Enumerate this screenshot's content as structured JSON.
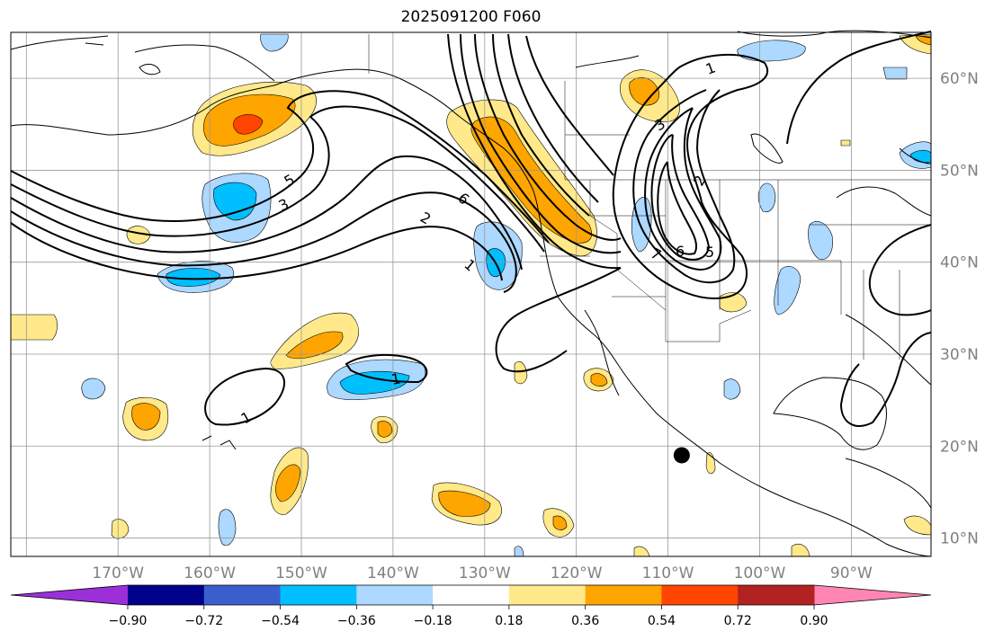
{
  "title": "2025091200 F060",
  "lat_labels": [
    {
      "value": 60,
      "text": "60°N"
    },
    {
      "value": 50,
      "text": "50°N"
    },
    {
      "value": 40,
      "text": "40°N"
    },
    {
      "value": 30,
      "text": "30°N"
    },
    {
      "value": 20,
      "text": "20°N"
    },
    {
      "value": 10,
      "text": "10°N"
    }
  ],
  "lon_labels": [
    {
      "value": -170,
      "text": "170°W"
    },
    {
      "value": -160,
      "text": "160°W"
    },
    {
      "value": -150,
      "text": "150°W"
    },
    {
      "value": -140,
      "text": "140°W"
    },
    {
      "value": -130,
      "text": "130°W"
    },
    {
      "value": -120,
      "text": "120°W"
    },
    {
      "value": -110,
      "text": "110°W"
    },
    {
      "value": -100,
      "text": "100°W"
    },
    {
      "value": -90,
      "text": "90°W"
    }
  ],
  "colorbar": {
    "bins": [
      "#9b30d9",
      "#00008b",
      "#3a5fcd",
      "#00bfff",
      "#add8ff",
      "#ffffff",
      "#ffe98a",
      "#ffa500",
      "#ff4500",
      "#b22222",
      "#ff85b3"
    ],
    "labels": [
      "−0.90",
      "−0.72",
      "−0.54",
      "−0.36",
      "−0.18",
      "0.18",
      "0.36",
      "0.54",
      "0.72",
      "0.90"
    ]
  },
  "contour_labels": [
    "5",
    "3",
    "2",
    "1",
    "6",
    "1",
    "1",
    "1",
    "3",
    "2",
    "6",
    "5",
    "7"
  ],
  "marker": {
    "lon": -108.5,
    "lat": 19.0
  }
}
